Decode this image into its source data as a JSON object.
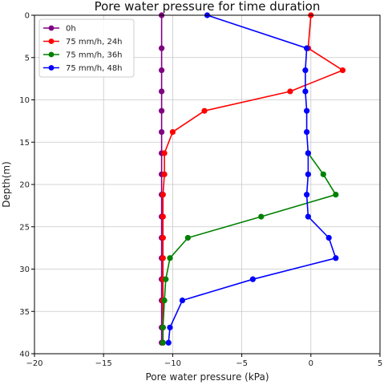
{
  "chart_data": {
    "type": "line",
    "title": "Pore water pressure for time duration",
    "xlabel": "Pore water pressure (kPa)",
    "ylabel": "Depth(m)",
    "xlim": [
      -20,
      5
    ],
    "ylim": [
      40,
      0
    ],
    "y_inverted": true,
    "grid": true,
    "legend_position": "top-left",
    "xticks": [
      -20,
      -15,
      -10,
      -5,
      0,
      5
    ],
    "yticks": [
      0,
      5,
      10,
      15,
      20,
      25,
      30,
      35,
      40
    ],
    "series": [
      {
        "name": "0h",
        "color": "#800080",
        "points": [
          {
            "x": -10.8,
            "y": 0
          },
          {
            "x": -10.8,
            "y": 3.9
          },
          {
            "x": -10.8,
            "y": 6.5
          },
          {
            "x": -10.8,
            "y": 9.0
          },
          {
            "x": -10.8,
            "y": 11.3
          },
          {
            "x": -10.8,
            "y": 13.8
          },
          {
            "x": -10.8,
            "y": 16.3
          },
          {
            "x": -10.8,
            "y": 18.8
          },
          {
            "x": -10.8,
            "y": 21.2
          },
          {
            "x": -10.8,
            "y": 23.8
          },
          {
            "x": -10.8,
            "y": 26.3
          },
          {
            "x": -10.8,
            "y": 28.7
          },
          {
            "x": -10.8,
            "y": 31.2
          },
          {
            "x": -10.8,
            "y": 33.7
          },
          {
            "x": -10.8,
            "y": 36.9
          },
          {
            "x": -10.8,
            "y": 38.7
          }
        ]
      },
      {
        "name": "75 mm/h, 24h",
        "color": "#ff0000",
        "points": [
          {
            "x": 0.0,
            "y": 0
          },
          {
            "x": -0.2,
            "y": 3.9
          },
          {
            "x": 2.3,
            "y": 6.5
          },
          {
            "x": -1.5,
            "y": 9.0
          },
          {
            "x": -7.7,
            "y": 11.3
          },
          {
            "x": -10.0,
            "y": 13.8
          },
          {
            "x": -10.6,
            "y": 16.3
          },
          {
            "x": -10.6,
            "y": 18.8
          },
          {
            "x": -10.7,
            "y": 21.2
          },
          {
            "x": -10.7,
            "y": 23.8
          },
          {
            "x": -10.7,
            "y": 26.3
          },
          {
            "x": -10.7,
            "y": 28.7
          },
          {
            "x": -10.7,
            "y": 31.2
          },
          {
            "x": -10.7,
            "y": 33.7
          },
          {
            "x": -10.7,
            "y": 36.9
          },
          {
            "x": -10.7,
            "y": 38.7
          }
        ]
      },
      {
        "name": "75 mm/h, 36h",
        "color": "#008000",
        "points": [
          {
            "x": -0.2,
            "y": 16.3
          },
          {
            "x": 0.9,
            "y": 18.8
          },
          {
            "x": 1.8,
            "y": 21.2
          },
          {
            "x": -3.6,
            "y": 23.8
          },
          {
            "x": -8.9,
            "y": 26.3
          },
          {
            "x": -10.2,
            "y": 28.7
          },
          {
            "x": -10.5,
            "y": 31.2
          },
          {
            "x": -10.6,
            "y": 33.7
          },
          {
            "x": -10.7,
            "y": 36.9
          },
          {
            "x": -10.7,
            "y": 38.7
          }
        ]
      },
      {
        "name": "75 mm/h, 48h",
        "color": "#0000ff",
        "points": [
          {
            "x": -7.5,
            "y": 0
          },
          {
            "x": -0.3,
            "y": 3.9
          },
          {
            "x": -0.4,
            "y": 6.5
          },
          {
            "x": -0.4,
            "y": 9.0
          },
          {
            "x": -0.3,
            "y": 11.3
          },
          {
            "x": -0.3,
            "y": 13.8
          },
          {
            "x": -0.2,
            "y": 16.3
          },
          {
            "x": -0.2,
            "y": 18.8
          },
          {
            "x": -0.3,
            "y": 21.2
          },
          {
            "x": -0.2,
            "y": 23.8
          },
          {
            "x": 1.3,
            "y": 26.3
          },
          {
            "x": 1.8,
            "y": 28.7
          },
          {
            "x": -4.2,
            "y": 31.2
          },
          {
            "x": -9.3,
            "y": 33.7
          },
          {
            "x": -10.2,
            "y": 36.9
          },
          {
            "x": -10.3,
            "y": 38.7
          }
        ]
      }
    ]
  }
}
